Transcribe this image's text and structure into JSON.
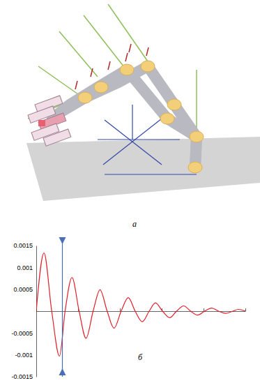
{
  "panel_labels": [
    "а",
    "б"
  ],
  "chart_data": {
    "type": "line",
    "x": [
      0,
      0.37,
      0.74,
      1.11,
      1.38,
      1.71,
      2.05,
      2.38,
      2.72,
      3.05,
      3.39,
      3.72,
      4.06,
      4.4,
      4.73,
      5.07,
      5.4,
      5.7,
      6.04,
      6.38,
      6.71,
      7.05,
      7.38,
      7.72,
      8.05,
      8.39,
      8.72,
      9.06,
      9.4,
      9.66,
      10
    ],
    "series": [
      {
        "color": "#e0202a",
        "values": [
          0,
          0.00133,
          0,
          -0.00103,
          0,
          0.00077,
          0,
          -0.00062,
          0,
          0.00049,
          0,
          -0.00039,
          0,
          0.00031,
          0,
          -0.00024,
          0,
          0.00019,
          0,
          -0.00015,
          0,
          0.00012,
          0,
          -9e-05,
          0,
          7e-05,
          0,
          -5e-05,
          0,
          4e-05,
          0
        ]
      }
    ],
    "xlim": [
      0,
      10
    ],
    "xticks": [
      0,
      2,
      4,
      6,
      8,
      10
    ],
    "ylim": [
      -0.0015,
      0.0015
    ],
    "yticks": [
      -0.0015,
      -0.001,
      -0.0005,
      0.0005,
      0.001,
      0.0015
    ],
    "tick_labels": "y",
    "vline_x": 1.25
  }
}
